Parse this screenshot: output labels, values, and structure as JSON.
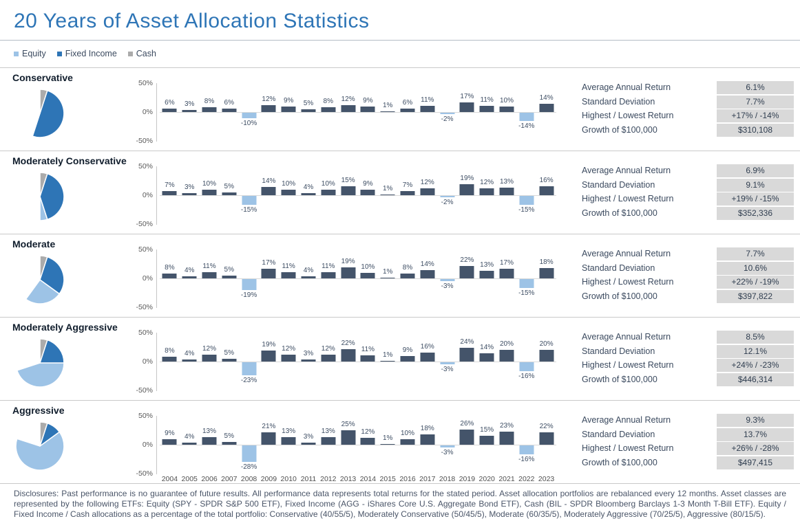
{
  "title": "20 Years of Asset Allocation Statistics",
  "colors": {
    "title_accent": "#2e75b6",
    "bar_positive": "#44546a",
    "bar_negative": "#9dc3e6",
    "stat_box": "#d9d9d9"
  },
  "legend": [
    {
      "label": "Equity",
      "color": "#9dc3e6"
    },
    {
      "label": "Fixed Income",
      "color": "#2e75b6"
    },
    {
      "label": "Cash",
      "color": "#ababab"
    }
  ],
  "stat_labels": [
    "Average Annual Return",
    "Standard Deviation",
    "Highest / Lowest Return",
    "Growth of $100,000"
  ],
  "chart_data": [
    {
      "type": "bar",
      "title": "Annual total returns by portfolio, 2004-2023",
      "categories": [
        "2004",
        "2005",
        "2006",
        "2007",
        "2008",
        "2009",
        "2010",
        "2011",
        "2012",
        "2013",
        "2014",
        "2015",
        "2016",
        "2017",
        "2018",
        "2019",
        "2020",
        "2021",
        "2022",
        "2023"
      ],
      "ylim": [
        -50,
        50
      ],
      "yticks": [
        "50%",
        "0%",
        "-50%"
      ],
      "grid": false,
      "series": [
        {
          "name": "Conservative",
          "values": [
            6,
            3,
            8,
            6,
            -10,
            12,
            9,
            5,
            8,
            12,
            9,
            1,
            6,
            11,
            -2,
            17,
            11,
            10,
            -14,
            14
          ]
        },
        {
          "name": "Moderately Conservative",
          "values": [
            7,
            3,
            10,
            5,
            -15,
            14,
            10,
            4,
            10,
            15,
            9,
            1,
            7,
            12,
            -2,
            19,
            12,
            13,
            -15,
            16
          ]
        },
        {
          "name": "Moderate",
          "values": [
            8,
            4,
            11,
            5,
            -19,
            17,
            11,
            4,
            11,
            19,
            10,
            1,
            8,
            14,
            -3,
            22,
            13,
            17,
            -15,
            18
          ]
        },
        {
          "name": "Moderately Aggressive",
          "values": [
            8,
            4,
            12,
            5,
            -23,
            19,
            12,
            3,
            12,
            22,
            11,
            1,
            9,
            16,
            -3,
            24,
            14,
            20,
            -16,
            20
          ]
        },
        {
          "name": "Aggressive",
          "values": [
            9,
            4,
            13,
            5,
            -28,
            21,
            13,
            3,
            13,
            25,
            12,
            1,
            10,
            18,
            -3,
            26,
            15,
            23,
            -16,
            22
          ]
        }
      ]
    },
    {
      "type": "pie",
      "title": "Portfolio allocations (Equity / Fixed Income / Cash)",
      "labels": [
        "Equity",
        "Fixed Income",
        "Cash"
      ],
      "series": [
        {
          "name": "Conservative",
          "values": [
            40,
            55,
            5
          ]
        },
        {
          "name": "Moderately Conservative",
          "values": [
            50,
            45,
            5
          ]
        },
        {
          "name": "Moderate",
          "values": [
            60,
            35,
            5
          ]
        },
        {
          "name": "Moderately Aggressive",
          "values": [
            70,
            25,
            5
          ]
        },
        {
          "name": "Aggressive",
          "values": [
            80,
            15,
            5
          ]
        }
      ]
    }
  ],
  "portfolios": [
    {
      "name": "Conservative",
      "stats": [
        "6.1%",
        "7.7%",
        "+17% / -14%",
        "$310,108"
      ]
    },
    {
      "name": "Moderately Conservative",
      "stats": [
        "6.9%",
        "9.1%",
        "+19% / -15%",
        "$352,336"
      ]
    },
    {
      "name": "Moderate",
      "stats": [
        "7.7%",
        "10.6%",
        "+22% / -19%",
        "$397,822"
      ]
    },
    {
      "name": "Moderately Aggressive",
      "stats": [
        "8.5%",
        "12.1%",
        "+24% / -23%",
        "$446,314"
      ]
    },
    {
      "name": "Aggressive",
      "stats": [
        "9.3%",
        "13.7%",
        "+26% / -28%",
        "$497,415"
      ]
    }
  ],
  "disclosures": "Disclosures: Past performance is no guarantee of future results. All performance data represents total returns for the stated period. Asset allocation portfolios are rebalanced every 12 months. Asset classes are represented by the following ETFs: Equity (SPY - SPDR S&P 500 ETF), Fixed Income (AGG - iShares Core U.S. Aggregate Bond ETF), Cash (BIL - SPDR  Bloomberg Barclays 1-3 Month T-Bill ETF). Equity / Fixed Income / Cash allocations as a percentage of the total portfolio: Conservative (40/55/5), Moderately Conservative (50/45/5), Moderate (60/35/5), Moderately Aggressive (70/25/5), Aggressive (80/15/5)."
}
